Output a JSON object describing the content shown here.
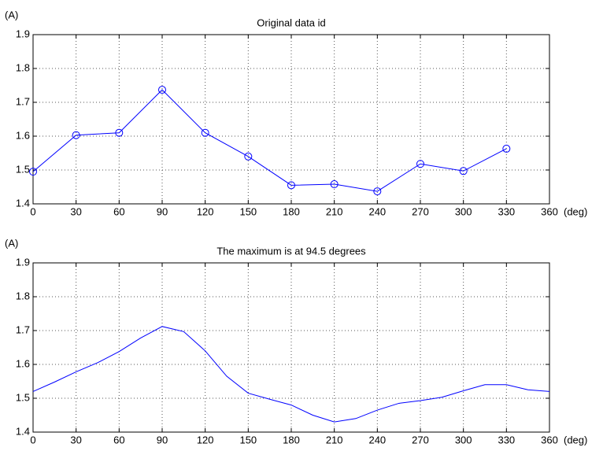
{
  "chart_data": [
    {
      "type": "line",
      "title": "Original data id",
      "y_label": "(A)",
      "x_label": "(deg)",
      "x": [
        0,
        30,
        60,
        90,
        120,
        150,
        180,
        210,
        240,
        270,
        300,
        330
      ],
      "series": [
        {
          "color": "#0000ff",
          "marker": "circle",
          "values": [
            1.495,
            1.603,
            1.61,
            1.737,
            1.61,
            1.54,
            1.455,
            1.458,
            1.437,
            1.518,
            1.497,
            1.563
          ]
        }
      ],
      "xlim": [
        0,
        360
      ],
      "xticks": [
        0,
        30,
        60,
        90,
        120,
        150,
        180,
        210,
        240,
        270,
        300,
        330,
        360
      ],
      "ylim": [
        1.4,
        1.9
      ],
      "yticks": [
        1.4,
        1.5,
        1.6,
        1.7,
        1.8,
        1.9
      ],
      "grid": true
    },
    {
      "type": "line",
      "title": "The maximum is at 94.5 degrees",
      "y_label": "(A)",
      "x_label": "(deg)",
      "x": [
        0,
        15,
        30,
        45,
        60,
        75,
        90,
        105,
        120,
        135,
        150,
        165,
        180,
        195,
        210,
        225,
        240,
        255,
        270,
        285,
        300,
        315,
        330,
        345,
        360
      ],
      "series": [
        {
          "color": "#0000ff",
          "values": [
            1.52,
            1.548,
            1.578,
            1.605,
            1.638,
            1.678,
            1.712,
            1.697,
            1.64,
            1.565,
            1.515,
            1.497,
            1.48,
            1.45,
            1.43,
            1.44,
            1.465,
            1.485,
            1.493,
            1.503,
            1.522,
            1.54,
            1.54,
            1.525,
            1.52
          ]
        }
      ],
      "xlim": [
        0,
        360
      ],
      "xticks": [
        0,
        30,
        60,
        90,
        120,
        150,
        180,
        210,
        240,
        270,
        300,
        330,
        360
      ],
      "ylim": [
        1.4,
        1.9
      ],
      "yticks": [
        1.4,
        1.5,
        1.6,
        1.7,
        1.8,
        1.9
      ],
      "grid": true
    }
  ]
}
